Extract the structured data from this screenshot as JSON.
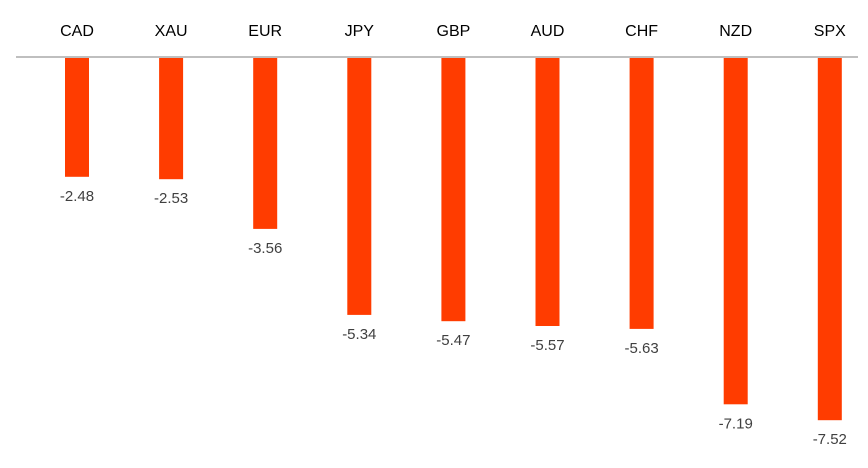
{
  "chart_data": {
    "type": "bar",
    "categories": [
      "CAD",
      "XAU",
      "EUR",
      "JPY",
      "GBP",
      "AUD",
      "CHF",
      "NZD",
      "SPX"
    ],
    "values": [
      -2.48,
      -2.53,
      -3.56,
      -5.34,
      -5.47,
      -5.57,
      -5.63,
      -7.19,
      -7.52
    ],
    "value_labels": [
      "-2.48",
      "-2.53",
      "-3.56",
      "-5.34",
      "-5.47",
      "-5.57",
      "-5.63",
      "-7.19",
      "-7.52"
    ],
    "title": "",
    "xlabel": "",
    "ylabel": "",
    "ylim": [
      -8,
      0
    ],
    "grid": false,
    "legend": "none",
    "category_axis": "top",
    "bar_color": "#ff3c00",
    "axis_color": "#bfbfbf"
  }
}
